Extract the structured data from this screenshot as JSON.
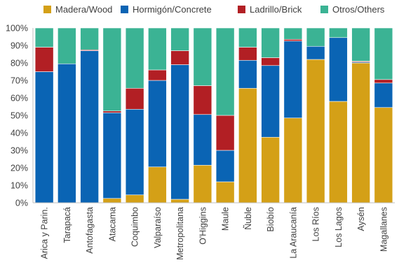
{
  "chart_data": {
    "type": "bar",
    "stacked": true,
    "categories": [
      "Arica y Parin.",
      "Tarapacá",
      "Antofagasta",
      "Atacama",
      "Coquimbo",
      "Valparaíso",
      "Metropolitana",
      "O'Higgins",
      "Maule",
      "Ñuble",
      "Biobío",
      "La Araucanía",
      "Los Ríos",
      "Los Lagos",
      "Aysén",
      "Magallanes"
    ],
    "series": [
      {
        "name": "Madera/Wood",
        "color": "#D4A017",
        "values": [
          0,
          0,
          0,
          2.5,
          4.5,
          20.5,
          2,
          21.5,
          12,
          65.5,
          37.5,
          48.5,
          82,
          58,
          80,
          54.5
        ]
      },
      {
        "name": "Hormigón/Concrete",
        "color": "#0A64B4",
        "values": [
          75,
          79.5,
          87,
          49,
          49,
          49.5,
          77,
          29,
          18,
          16,
          41,
          44,
          7.5,
          36.5,
          0.5,
          14
        ]
      },
      {
        "name": "Ladrillo/Brick",
        "color": "#B21F24",
        "values": [
          14,
          0,
          0.5,
          1,
          12,
          6,
          8,
          16.5,
          20,
          7.5,
          4.5,
          1,
          0,
          0,
          0.5,
          2
        ]
      },
      {
        "name": "Otros/Others",
        "color": "#3BB394",
        "values": [
          11,
          20.5,
          12.5,
          47.5,
          34.5,
          24,
          13,
          33,
          50,
          11,
          17,
          6.5,
          10.5,
          5.5,
          19,
          29.5
        ]
      }
    ],
    "y_ticks": [
      "0%",
      "10%",
      "20%",
      "30%",
      "40%",
      "50%",
      "60%",
      "70%",
      "80%",
      "90%",
      "100%"
    ],
    "ylim": [
      0,
      100
    ],
    "legend_position": "top",
    "grid": false
  }
}
